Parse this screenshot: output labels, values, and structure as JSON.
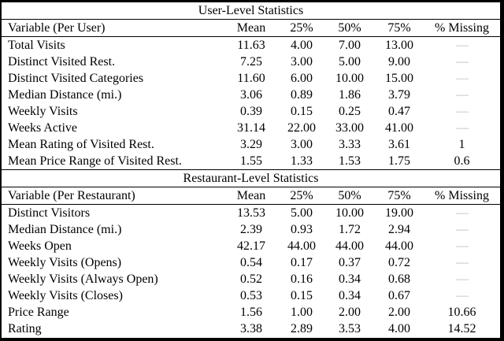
{
  "table": {
    "sections": [
      {
        "title": "User-Level Statistics",
        "columns": [
          "Variable (Per User)",
          "Mean",
          "25%",
          "50%",
          "75%",
          "% Missing"
        ],
        "rows": [
          [
            "Total Visits",
            "11.63",
            "4.00",
            "7.00",
            "13.00",
            "—"
          ],
          [
            "Distinct Visited Rest.",
            "7.25",
            "3.00",
            "5.00",
            "9.00",
            "—"
          ],
          [
            "Distinct Visited Categories",
            "11.60",
            "6.00",
            "10.00",
            "15.00",
            "—"
          ],
          [
            "Median Distance (mi.)",
            "3.06",
            "0.89",
            "1.86",
            "3.79",
            "—"
          ],
          [
            "Weekly Visits",
            "0.39",
            "0.15",
            "0.25",
            "0.47",
            "—"
          ],
          [
            "Weeks Active",
            "31.14",
            "22.00",
            "33.00",
            "41.00",
            "—"
          ],
          [
            "Mean Rating of Visited Rest.",
            "3.29",
            "3.00",
            "3.33",
            "3.61",
            "1"
          ],
          [
            "Mean Price Range of Visited Rest.",
            "1.55",
            "1.33",
            "1.53",
            "1.75",
            "0.6"
          ]
        ]
      },
      {
        "title": "Restaurant-Level Statistics",
        "columns": [
          "Variable (Per Restaurant)",
          "Mean",
          "25%",
          "50%",
          "75%",
          "% Missing"
        ],
        "rows": [
          [
            "Distinct Visitors",
            "13.53",
            "5.00",
            "10.00",
            "19.00",
            "—"
          ],
          [
            "Median Distance (mi.)",
            "2.39",
            "0.93",
            "1.72",
            "2.94",
            "—"
          ],
          [
            "Weeks Open",
            "42.17",
            "44.00",
            "44.00",
            "44.00",
            "—"
          ],
          [
            "Weekly Visits (Opens)",
            "0.54",
            "0.17",
            "0.37",
            "0.72",
            "—"
          ],
          [
            "Weekly Visits (Always Open)",
            "0.52",
            "0.16",
            "0.34",
            "0.68",
            "—"
          ],
          [
            "Weekly Visits (Closes)",
            "0.53",
            "0.15",
            "0.34",
            "0.67",
            "—"
          ],
          [
            "Price Range",
            "1.56",
            "1.00",
            "2.00",
            "2.00",
            "10.66"
          ],
          [
            "Rating",
            "3.38",
            "2.89",
            "3.53",
            "4.00",
            "14.52"
          ]
        ]
      }
    ],
    "missing_placeholder": "—"
  },
  "colors": {
    "text": "#000000",
    "rule": "#000000",
    "missing_dash": "#b9b9b9",
    "background": "#ffffff"
  }
}
